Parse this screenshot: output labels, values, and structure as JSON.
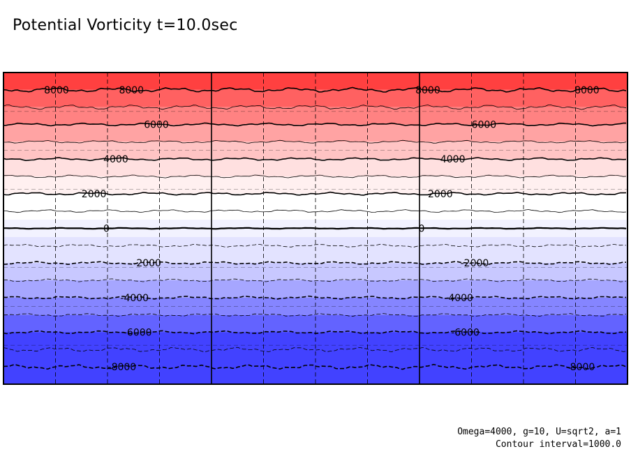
{
  "chart_data": {
    "type": "contour",
    "title": "Potential Vorticity t=10.0sec",
    "xlabel": "",
    "ylabel": "",
    "ylim": [
      -9000,
      9000
    ],
    "contour_interval": 1000.0,
    "levels": [
      -9000,
      -8000,
      -7000,
      -6000,
      -5000,
      -4000,
      -3000,
      -2000,
      -1000,
      0,
      1000,
      2000,
      3000,
      4000,
      5000,
      6000,
      7000,
      8000,
      9000
    ],
    "fill_colors": [
      "#4242ff",
      "#6363ff",
      "#8585ff",
      "#a6a6ff",
      "#c8c8ff",
      "#e3e3ff",
      "#f2f2ff",
      "#ffffff",
      "#fff0f0",
      "#ffe0e0",
      "#ffc4c4",
      "#ffa3a3",
      "#ff8282",
      "#ff6161",
      "#ff4040"
    ],
    "contour_labels": [
      {
        "text": "8000",
        "level": 8000,
        "xf": 0.085
      },
      {
        "text": "8000",
        "level": 8000,
        "xf": 0.205
      },
      {
        "text": "8000",
        "level": 8000,
        "xf": 0.68
      },
      {
        "text": "8000",
        "level": 8000,
        "xf": 0.935
      },
      {
        "text": "6000",
        "level": 6000,
        "xf": 0.245
      },
      {
        "text": "6000",
        "level": 6000,
        "xf": 0.77
      },
      {
        "text": "4000",
        "level": 4000,
        "xf": 0.18
      },
      {
        "text": "4000",
        "level": 4000,
        "xf": 0.72
      },
      {
        "text": "2000",
        "level": 2000,
        "xf": 0.145
      },
      {
        "text": "2000",
        "level": 2000,
        "xf": 0.7
      },
      {
        "text": "0",
        "level": 0,
        "xf": 0.165
      },
      {
        "text": "0",
        "level": 0,
        "xf": 0.67
      },
      {
        "text": "-2000",
        "level": -2000,
        "xf": 0.23
      },
      {
        "text": "-2000",
        "level": -2000,
        "xf": 0.755
      },
      {
        "text": "-4000",
        "level": -4000,
        "xf": 0.21
      },
      {
        "text": "-4000",
        "level": -4000,
        "xf": 0.73
      },
      {
        "text": "-6000",
        "level": -6000,
        "xf": 0.215
      },
      {
        "text": "-6000",
        "level": -6000,
        "xf": 0.74
      },
      {
        "text": "-8000",
        "level": -8000,
        "xf": 0.19
      },
      {
        "text": "-8000",
        "level": -8000,
        "xf": 0.925
      }
    ],
    "grid": {
      "major_vertical": 3,
      "minor_vertical": 12,
      "minor_horizontal": 8
    }
  },
  "footer": {
    "params": "Omega=4000, g=10, U=sqrt2, a=1",
    "contour_interval": "Contour interval=1000.0"
  }
}
